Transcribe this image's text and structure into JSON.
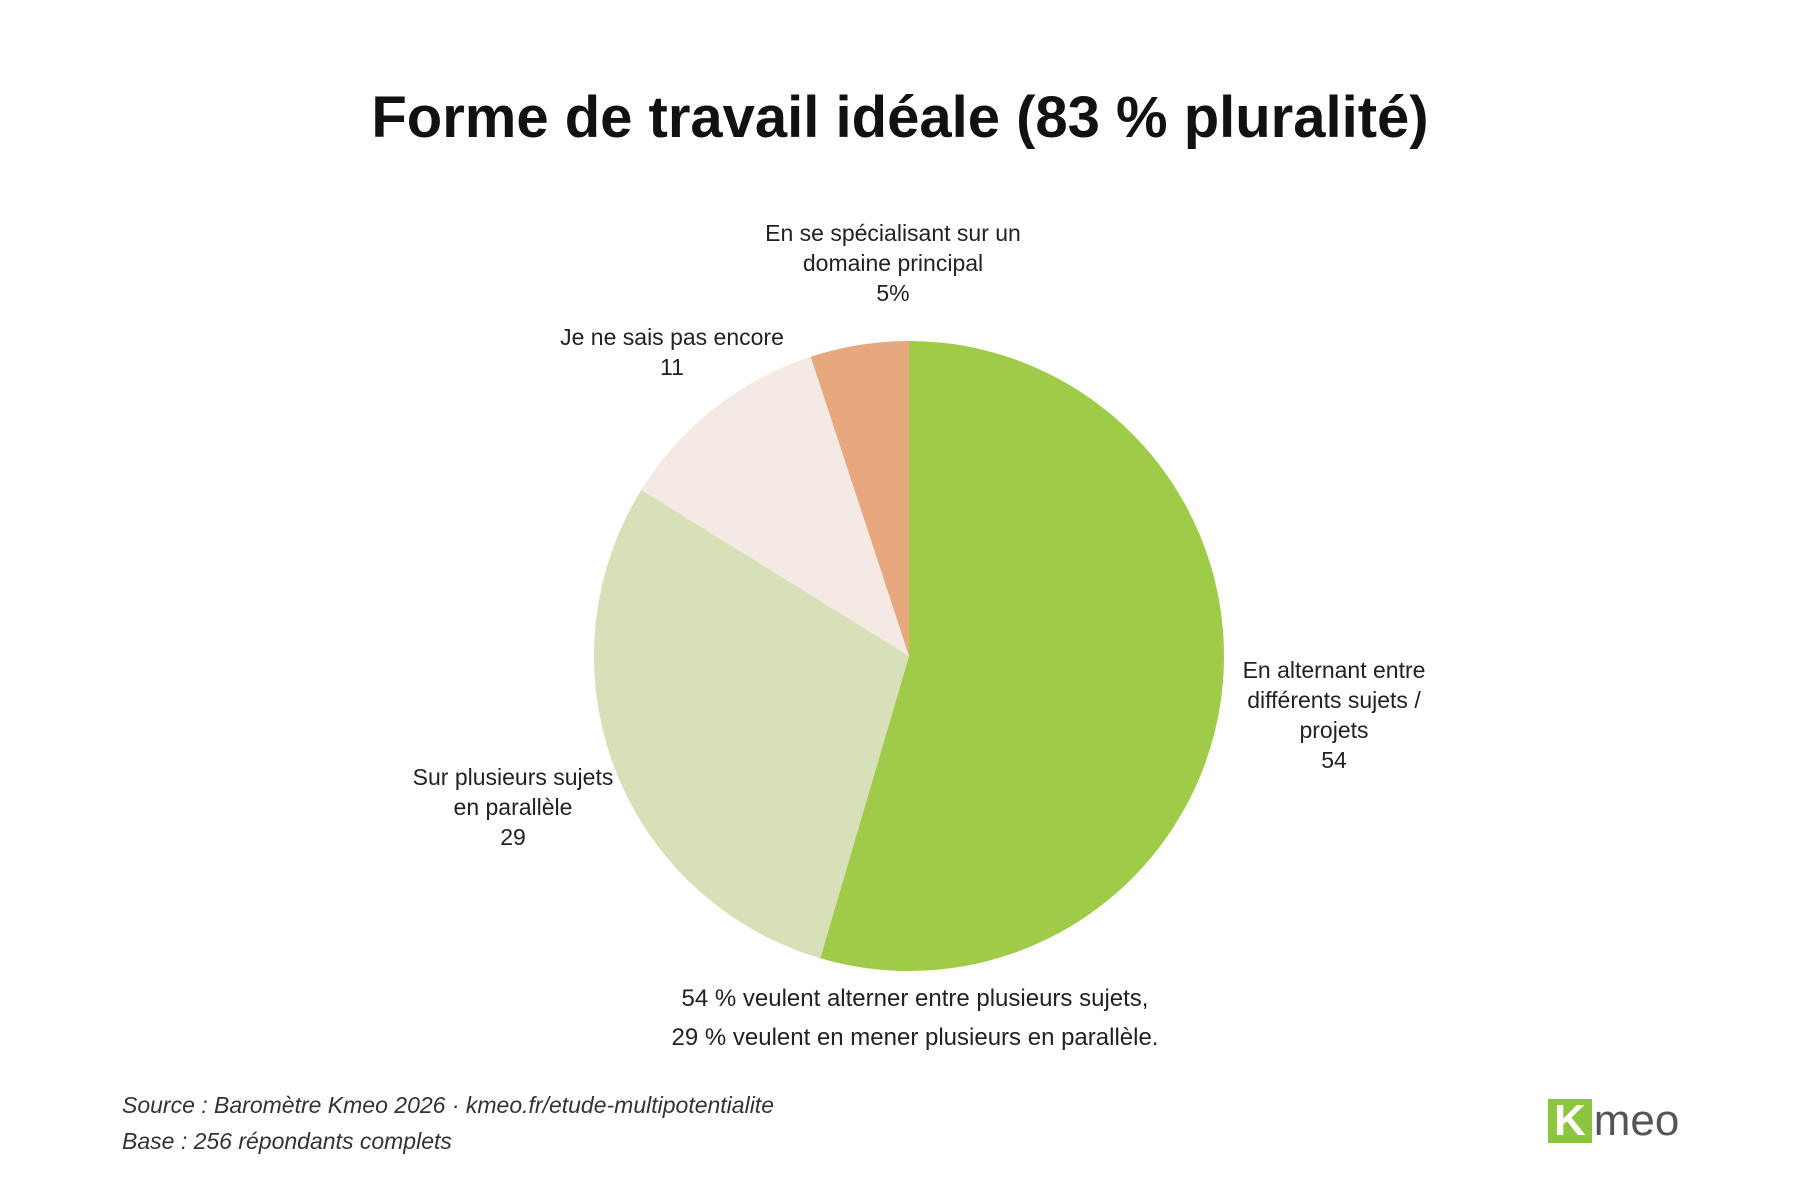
{
  "chart_data": {
    "type": "pie",
    "title": "Forme de travail idéale (83 % pluralité)",
    "categories": [
      "En alternant entre différents sujets / projets",
      "Sur plusieurs sujets en parallèle",
      "Je ne sais pas encore",
      "En se spécialisant sur un domaine principal"
    ],
    "values": [
      54,
      29,
      11,
      5
    ],
    "value_labels": [
      "54",
      "29",
      "11",
      "5%"
    ],
    "colors": [
      "#9fcb48",
      "#d8e0b9",
      "#f4e9e3",
      "#e8a87e"
    ],
    "annotation": [
      "54 % veulent alterner entre plusieurs sujets,",
      "29 % veulent en mener plusieurs en parallèle."
    ],
    "source": [
      "Source : Baromètre Kmeo 2026 · kmeo.fr/etude-multipotentialite",
      "Base : 256 répondants complets"
    ],
    "logo": {
      "mark": "K",
      "text": "meo"
    }
  }
}
